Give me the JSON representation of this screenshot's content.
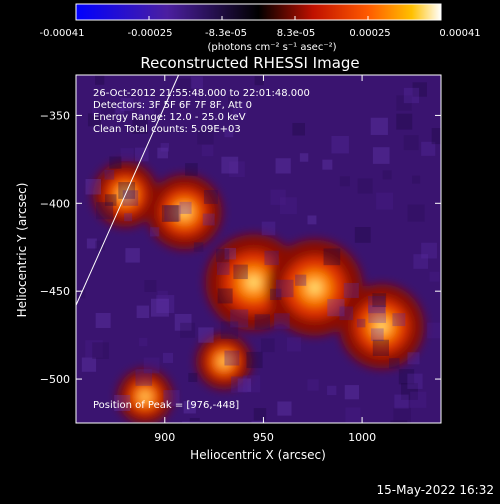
{
  "colorbar": {
    "tick_labels": [
      "-0.00041",
      "-0.00025",
      "-8.3e-05",
      "8.3e-05",
      "0.00025",
      "0.00041"
    ],
    "unit_label": "(photons cm⁻² s⁻¹ asec⁻²)",
    "range": [
      -0.00041,
      0.00041
    ]
  },
  "chart_data": {
    "type": "heatmap",
    "title": "Reconstructed RHESSI Image",
    "xlabel": "Heliocentric X (arcsec)",
    "ylabel": "Heliocentric Y (arcsec)",
    "xlim": [
      855,
      1040
    ],
    "ylim": [
      -525,
      -327
    ],
    "xticks": [
      900,
      950,
      1000
    ],
    "yticks": [
      -350,
      -400,
      -450,
      -500
    ],
    "xtick_labels": [
      "900",
      "950",
      "1000"
    ],
    "ytick_labels": [
      "−350",
      "−400",
      "−450",
      "−500"
    ],
    "annotations": [
      "26-Oct-2012 21:55:48.000 to 22:01:48.000",
      "Detectors: 3F 5F 6F 7F 8F, Att 0",
      "Energy Range: 12.0 - 25.0 keV",
      "Clean     Total counts: 5.09E+03"
    ],
    "peak_label": "Position of Peak = [976,-448]",
    "peak": [
      976,
      -448
    ],
    "limb_line": [
      [
        855,
        -458
      ],
      [
        907,
        -327
      ]
    ],
    "bright_sources": [
      {
        "x": 945,
        "y": -445,
        "value": 0.00041
      },
      {
        "x": 976,
        "y": -448,
        "value": 0.00041
      },
      {
        "x": 910,
        "y": -405,
        "value": 0.0003
      },
      {
        "x": 1010,
        "y": -470,
        "value": 0.00035
      },
      {
        "x": 880,
        "y": -395,
        "value": 0.00025
      },
      {
        "x": 930,
        "y": -490,
        "value": 0.0002
      },
      {
        "x": 890,
        "y": -510,
        "value": 0.0002
      }
    ]
  },
  "timestamp": "15-May-2022 16:32"
}
